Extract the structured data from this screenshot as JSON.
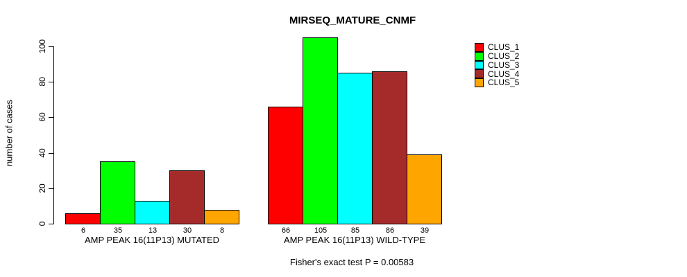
{
  "chart_data": {
    "type": "bar",
    "title": "MIRSEQ_MATURE_CNMF",
    "ylabel": "number of cases",
    "footnote": "Fisher's exact test P = 0.00583",
    "yticks": [
      0,
      20,
      40,
      60,
      80,
      100
    ],
    "ylim": [
      0,
      105
    ],
    "grid": false,
    "legend_position": "right",
    "series": [
      {
        "name": "CLUS_1",
        "color": "#FF0000"
      },
      {
        "name": "CLUS_2",
        "color": "#00FF00"
      },
      {
        "name": "CLUS_3",
        "color": "#00FFFF"
      },
      {
        "name": "CLUS_4",
        "color": "#A52A2A"
      },
      {
        "name": "CLUS_5",
        "color": "#FFA500"
      }
    ],
    "groups": [
      {
        "label": "AMP PEAK 16(11P13) MUTATED",
        "values": [
          6,
          35,
          13,
          30,
          8
        ]
      },
      {
        "label": "AMP PEAK 16(11P13) WILD-TYPE",
        "values": [
          66,
          105,
          85,
          86,
          39
        ]
      }
    ]
  }
}
